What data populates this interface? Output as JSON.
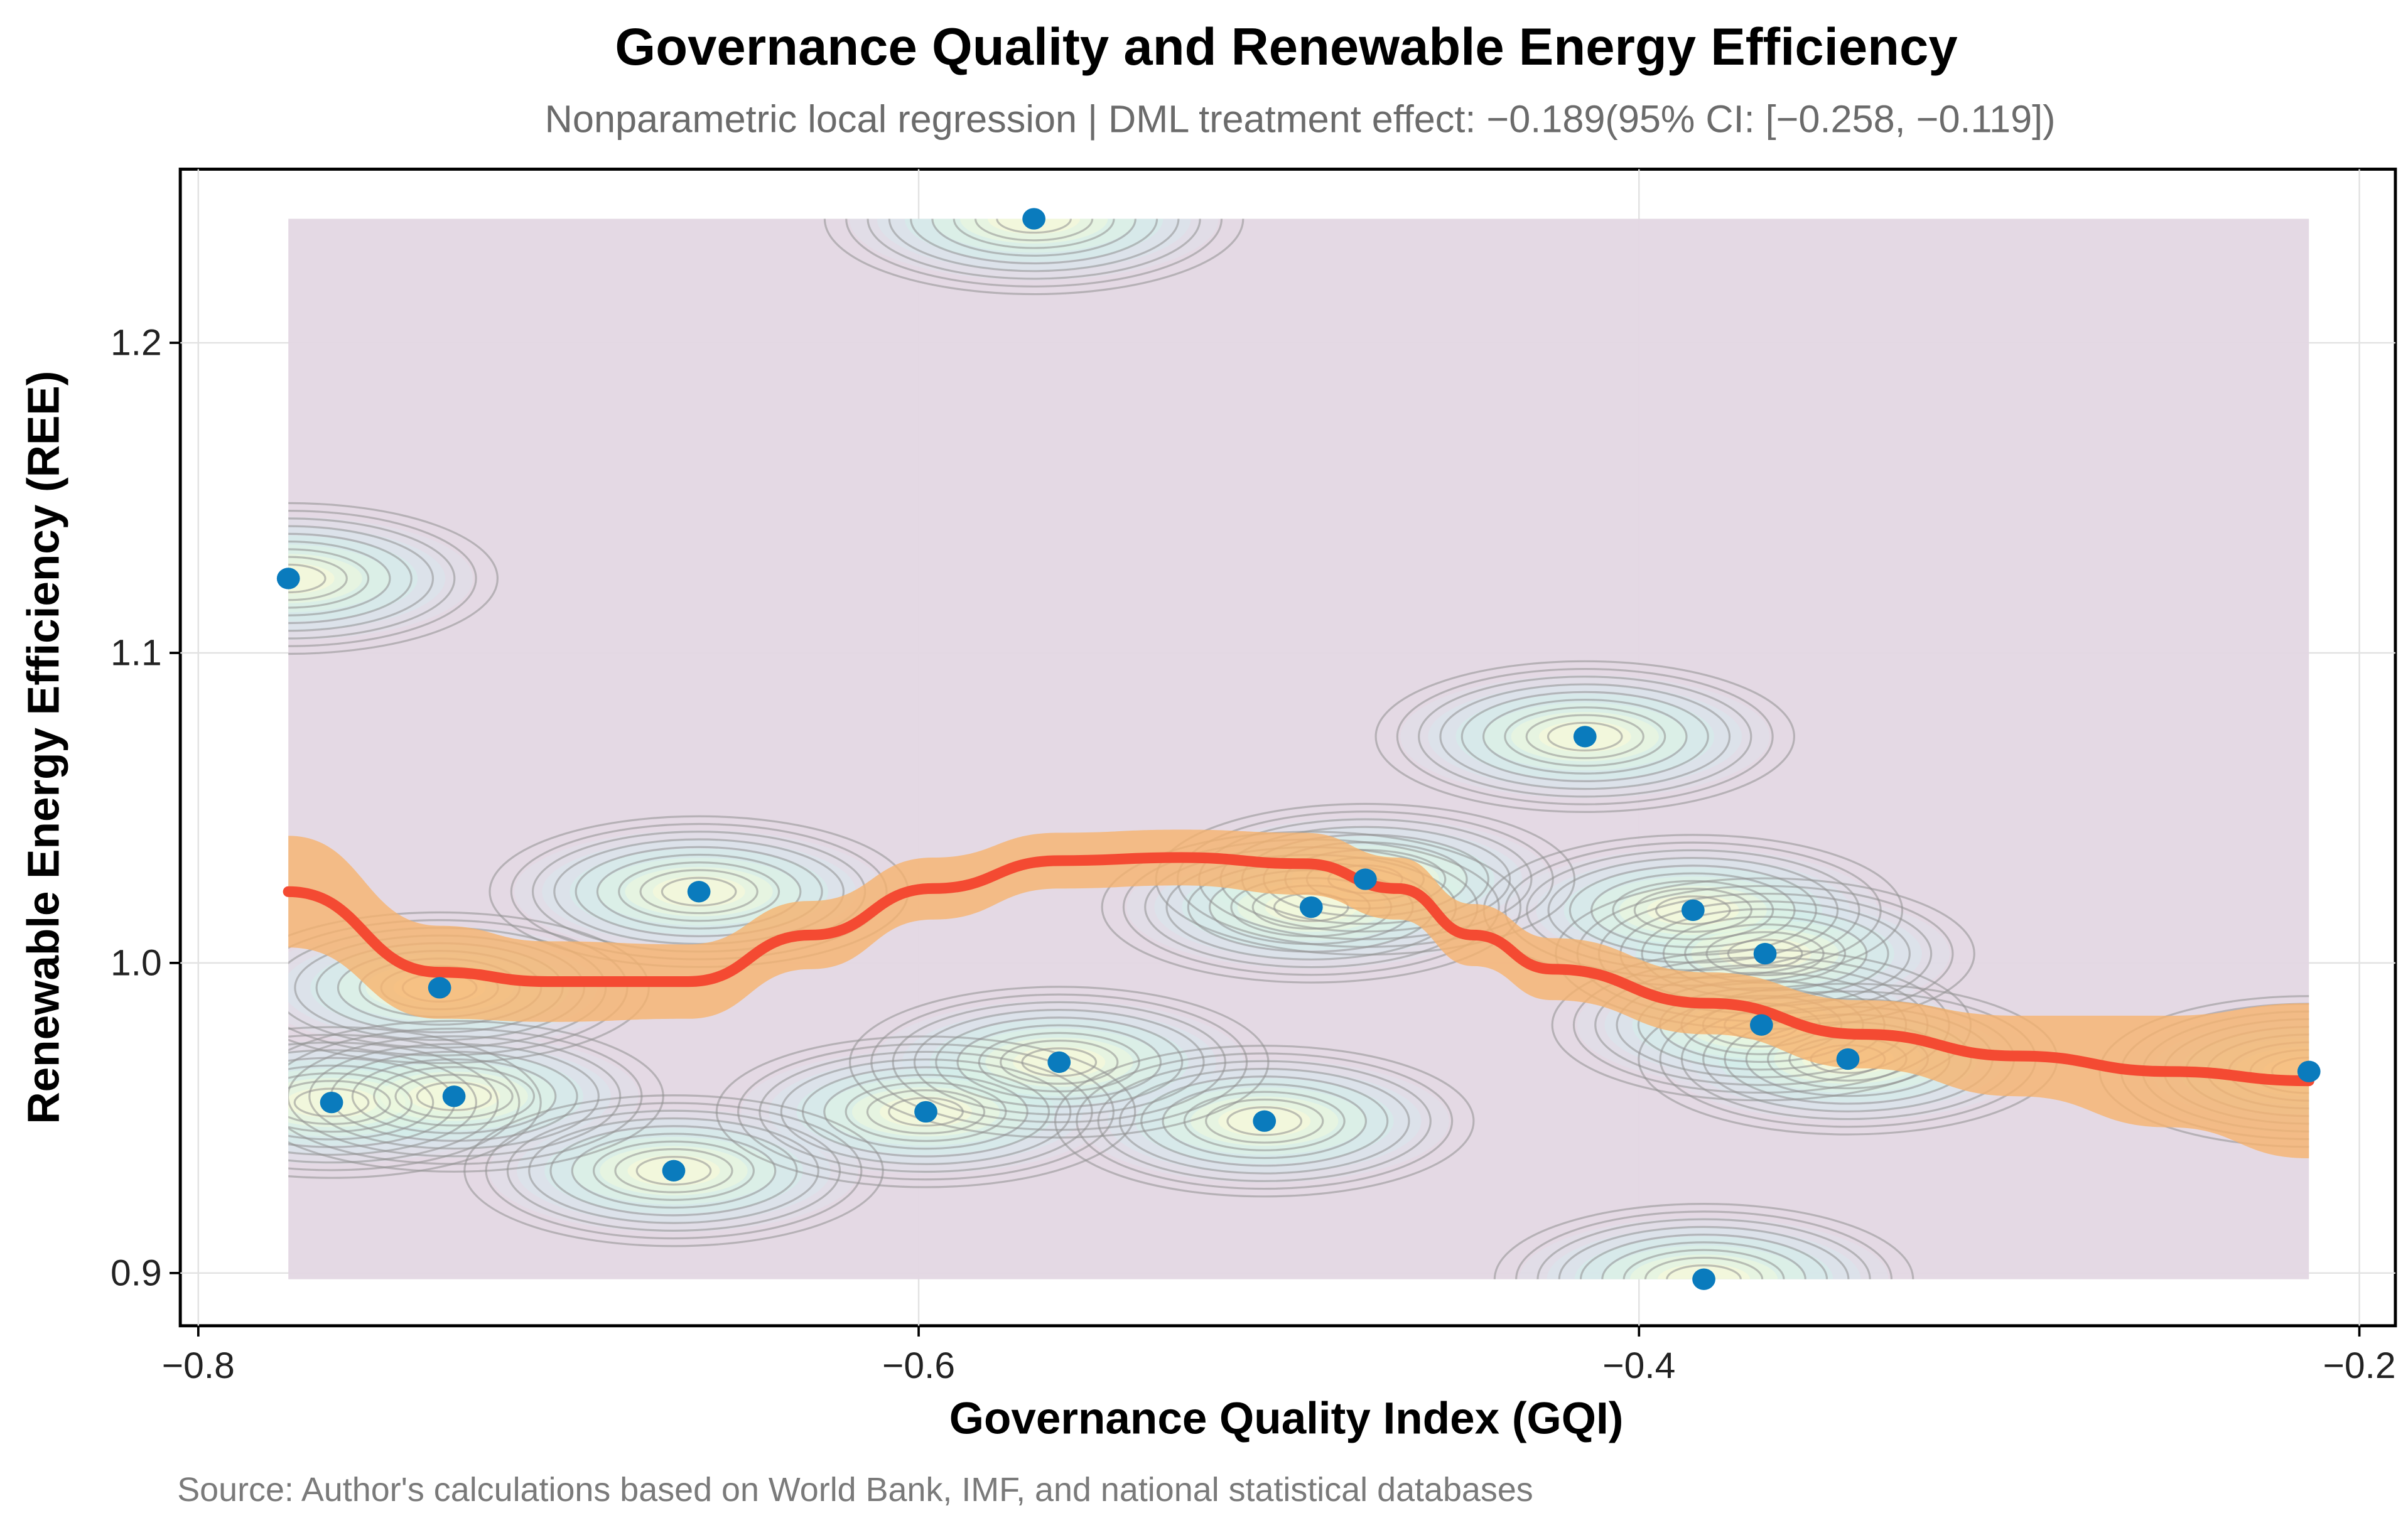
{
  "chart_data": {
    "type": "scatter",
    "title": "Governance Quality and Renewable Energy Efficiency",
    "subtitle": "Nonparametric local regression | DML treatment effect: −0.189(95% CI: [−0.258, −0.119])",
    "xlabel": "Governance Quality Index (GQI)",
    "ylabel": "Renewable Energy Efficiency (REE)",
    "caption": "Source: Author's calculations based on World Bank, IMF, and national statistical databases",
    "xlim": [
      -0.805,
      -0.19
    ],
    "ylim": [
      0.883,
      1.256
    ],
    "x_ticks": [
      -0.8,
      -0.6,
      -0.4,
      -0.2
    ],
    "x_tick_labels": [
      "−0.8",
      "−0.6",
      "−0.4",
      "−0.2"
    ],
    "y_ticks": [
      0.9,
      1.0,
      1.1,
      1.2
    ],
    "y_tick_labels": [
      "0.9",
      "1.0",
      "1.1",
      "1.2"
    ],
    "grid": true,
    "points": {
      "x": [
        -0.775,
        -0.568,
        -0.763,
        -0.733,
        -0.729,
        -0.668,
        -0.661,
        -0.598,
        -0.561,
        -0.504,
        -0.491,
        -0.476,
        -0.415,
        -0.385,
        -0.382,
        -0.365,
        -0.366,
        -0.342,
        -0.214
      ],
      "y": [
        1.124,
        1.24,
        0.955,
        0.992,
        0.957,
        0.933,
        1.023,
        0.952,
        0.968,
        0.949,
        1.018,
        1.027,
        1.073,
        1.017,
        0.898,
        1.003,
        0.98,
        0.969,
        0.965
      ]
    },
    "loess": {
      "x": [
        -0.775,
        -0.733,
        -0.703,
        -0.664,
        -0.63,
        -0.596,
        -0.561,
        -0.527,
        -0.493,
        -0.467,
        -0.446,
        -0.424,
        -0.381,
        -0.338,
        -0.295,
        -0.253,
        -0.214
      ],
      "y": [
        1.023,
        0.997,
        0.994,
        0.994,
        1.009,
        1.024,
        1.033,
        1.034,
        1.032,
        1.024,
        1.009,
        0.998,
        0.987,
        0.977,
        0.97,
        0.965,
        0.962
      ],
      "ci_halfwidth": [
        0.018,
        0.015,
        0.013,
        0.012,
        0.011,
        0.01,
        0.009,
        0.009,
        0.01,
        0.01,
        0.01,
        0.01,
        0.01,
        0.011,
        0.013,
        0.018,
        0.025
      ]
    },
    "density_extent": {
      "x": [
        -0.775,
        -0.214
      ],
      "y": [
        0.898,
        1.24
      ]
    },
    "colors": {
      "point": "#0a7bbd",
      "line": "#f44a32",
      "ci": "#f6b36e",
      "density_low": "#e3d7e3",
      "contour": "#8f8f8f"
    }
  }
}
